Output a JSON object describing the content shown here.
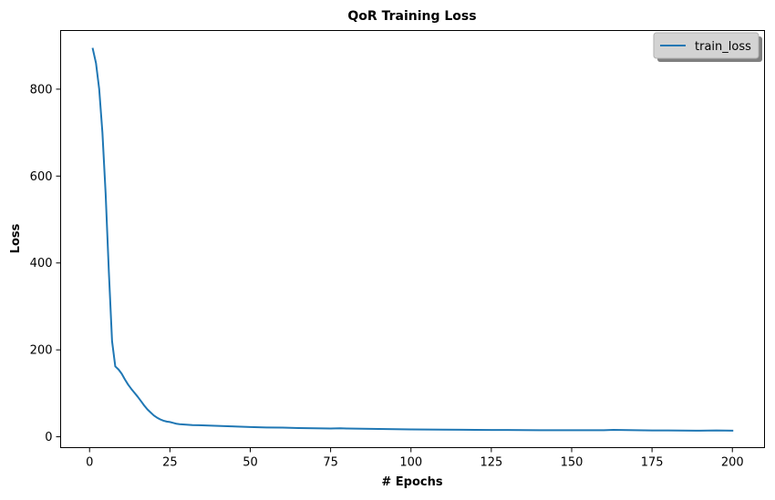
{
  "chart_data": {
    "type": "line",
    "title": "QoR Training Loss",
    "xlabel": "# Epochs",
    "ylabel": "Loss",
    "xlim": [
      -9,
      210
    ],
    "ylim": [
      -25,
      935
    ],
    "xticks": [
      0,
      25,
      50,
      75,
      100,
      125,
      150,
      175,
      200
    ],
    "yticks": [
      0,
      200,
      400,
      600,
      800
    ],
    "grid": false,
    "legend": {
      "position": "top-right",
      "entries": [
        "train_loss"
      ]
    },
    "series": [
      {
        "name": "train_loss",
        "color": "#1f77b4",
        "x": [
          1,
          2,
          3,
          4,
          5,
          6,
          7,
          8,
          9,
          10,
          11,
          12,
          13,
          14,
          15,
          16,
          17,
          18,
          19,
          20,
          21,
          22,
          23,
          24,
          25,
          26,
          27,
          28,
          30,
          32,
          34,
          36,
          38,
          40,
          42,
          44,
          46,
          48,
          50,
          55,
          60,
          65,
          70,
          75,
          78,
          80,
          85,
          90,
          95,
          100,
          110,
          120,
          125,
          130,
          140,
          150,
          160,
          163,
          170,
          175,
          180,
          190,
          195,
          200
        ],
        "y": [
          893,
          860,
          800,
          700,
          560,
          380,
          220,
          162,
          155,
          145,
          132,
          120,
          110,
          101,
          92,
          82,
          72,
          63,
          56,
          49,
          44,
          40,
          37,
          35,
          34,
          32,
          30,
          29,
          28,
          27,
          26.5,
          26,
          25.5,
          25,
          24.5,
          24,
          23.5,
          23,
          22.5,
          21.5,
          21,
          20,
          19.5,
          19,
          19.5,
          19,
          18.5,
          18,
          17.5,
          17,
          16.5,
          16,
          15.5,
          15.5,
          15,
          15,
          15,
          16,
          15,
          14.5,
          14.5,
          14,
          14.5,
          14
        ]
      }
    ]
  }
}
